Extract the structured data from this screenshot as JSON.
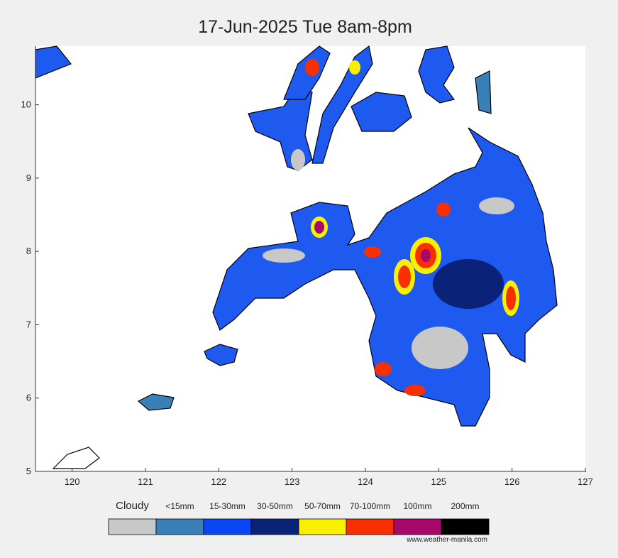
{
  "title": "17-Jun-2025 Tue 8am-8pm",
  "map": {
    "xlim": [
      119.5,
      127
    ],
    "ylim": [
      5,
      10.8
    ],
    "xticks": [
      120,
      121,
      122,
      123,
      124,
      125,
      126,
      127
    ],
    "yticks": [
      5,
      6,
      7,
      8,
      9,
      10
    ]
  },
  "legend": {
    "items": [
      {
        "label": "Cloudy",
        "color": "#c8c8c8"
      },
      {
        "label": "<15mm",
        "color": "#3a80b8"
      },
      {
        "label": "15-30mm",
        "color": "#0a46f4"
      },
      {
        "label": "30-50mm",
        "color": "#0a2278"
      },
      {
        "label": "50-70mm",
        "color": "#f8f000"
      },
      {
        "label": "70-100mm",
        "color": "#f83000"
      },
      {
        "label": "100mm",
        "color": "#a8086c"
      },
      {
        "label": "200mm",
        "color": "#000000"
      }
    ]
  },
  "credit": "www.weather-manila.com"
}
